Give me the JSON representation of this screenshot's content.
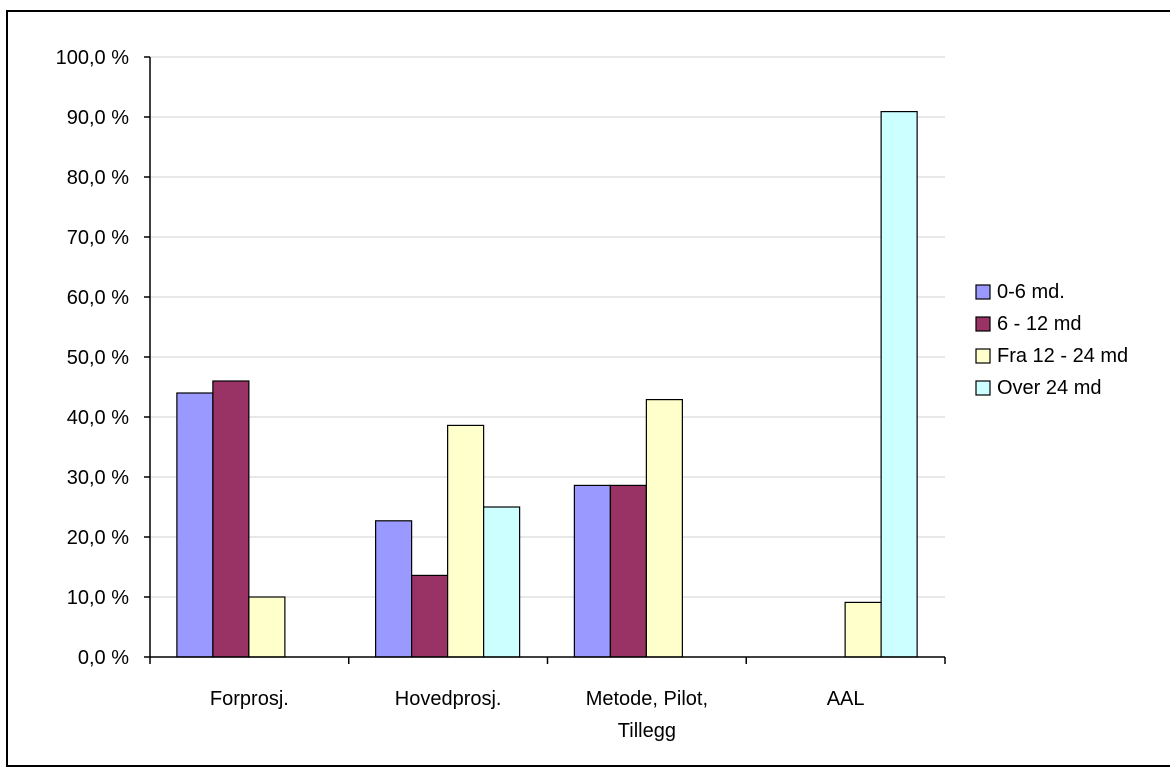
{
  "chart_data": {
    "type": "bar",
    "title": "",
    "xlabel": "",
    "ylabel": "",
    "ylim": [
      0,
      100
    ],
    "yticks": [
      0,
      10,
      20,
      30,
      40,
      50,
      60,
      70,
      80,
      90,
      100
    ],
    "ytick_labels": [
      "0,0 %",
      "10,0 %",
      "20,0 %",
      "30,0 %",
      "40,0 %",
      "50,0 %",
      "60,0 %",
      "70,0 %",
      "80,0 %",
      "90,0 %",
      "100,0 %"
    ],
    "categories": [
      "Forprosj.",
      "Hovedprosj.",
      "Metode, Pilot, Tillegg",
      "AAL"
    ],
    "category_label_lines": [
      [
        "Forprosj."
      ],
      [
        "Hovedprosj."
      ],
      [
        "Metode, Pilot,",
        "Tillegg"
      ],
      [
        "AAL"
      ]
    ],
    "grid": true,
    "legend_position": "right",
    "series": [
      {
        "name": "0-6 md.",
        "color": "#9999FF",
        "values": [
          44.0,
          22.7,
          28.6,
          0
        ]
      },
      {
        "name": "6 - 12 md",
        "color": "#993366",
        "values": [
          46.0,
          13.6,
          28.6,
          0
        ]
      },
      {
        "name": "Fra 12 - 24 md",
        "color": "#FFFFCC",
        "values": [
          10.0,
          38.6,
          42.9,
          9.1
        ]
      },
      {
        "name": "Over 24 md",
        "color": "#CCFFFF",
        "values": [
          0,
          25.0,
          0,
          90.9
        ]
      }
    ]
  }
}
